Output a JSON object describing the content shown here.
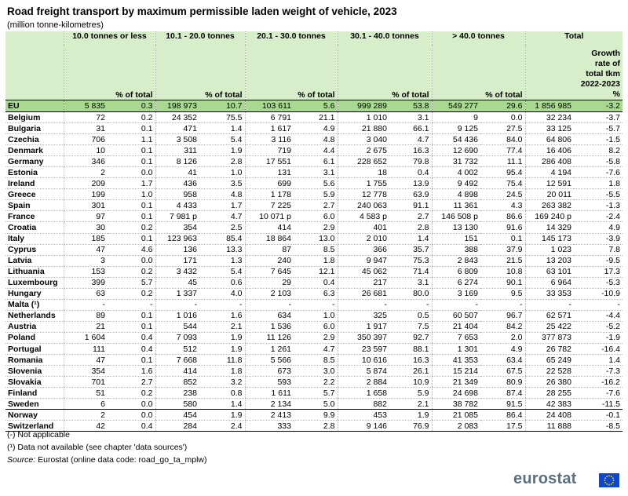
{
  "title": "Road freight transport by maximum permissible laden weight of vehicle, 2023",
  "subtitle": "(million tonne-kilometres)",
  "group_headers": [
    "10.0 tonnes or less",
    "10.1 - 20.0 tonnes",
    "20.1 - 30.0 tonnes",
    "30.1 - 40.0 tonnes",
    "> 40.0 tonnes",
    "Total"
  ],
  "pct_header": "% of total",
  "growth_header_lines": [
    "Growth",
    "rate of",
    "total tkm",
    "2022-2023",
    "%"
  ],
  "eu_row": [
    "EU",
    "5 835",
    "0.3",
    "198 973",
    "10.7",
    "103 611",
    "5.6",
    "999 289",
    "53.8",
    "549 277",
    "29.6",
    "1 856 985",
    "-3.2"
  ],
  "rows": [
    [
      "Belgium",
      "72",
      "0.2",
      "24 352",
      "75.5",
      "6 791",
      "21.1",
      "1 010",
      "3.1",
      "9",
      "0.0",
      "32 234",
      "-3.7"
    ],
    [
      "Bulgaria",
      "31",
      "0.1",
      "471",
      "1.4",
      "1 617",
      "4.9",
      "21 880",
      "66.1",
      "9 125",
      "27.5",
      "33 125",
      "-5.7"
    ],
    [
      "Czechia",
      "706",
      "1.1",
      "3 508",
      "5.4",
      "3 116",
      "4.8",
      "3 040",
      "4.7",
      "54 436",
      "84.0",
      "64 806",
      "-1.5"
    ],
    [
      "Denmark",
      "10",
      "0.1",
      "311",
      "1.9",
      "719",
      "4.4",
      "2 675",
      "16.3",
      "12 690",
      "77.4",
      "16 406",
      "8.2"
    ],
    [
      "Germany",
      "346",
      "0.1",
      "8 126",
      "2.8",
      "17 551",
      "6.1",
      "228 652",
      "79.8",
      "31 732",
      "11.1",
      "286 408",
      "-5.8"
    ],
    [
      "Estonia",
      "2",
      "0.0",
      "41",
      "1.0",
      "131",
      "3.1",
      "18",
      "0.4",
      "4 002",
      "95.4",
      "4 194",
      "-7.6"
    ],
    [
      "Ireland",
      "209",
      "1.7",
      "436",
      "3.5",
      "699",
      "5.6",
      "1 755",
      "13.9",
      "9 492",
      "75.4",
      "12 591",
      "1.8"
    ],
    [
      "Greece",
      "199",
      "1.0",
      "958",
      "4.8",
      "1 178",
      "5.9",
      "12 778",
      "63.9",
      "4 898",
      "24.5",
      "20 011",
      "-5.5"
    ],
    [
      "Spain",
      "301",
      "0.1",
      "4 433",
      "1.7",
      "7 225",
      "2.7",
      "240 063",
      "91.1",
      "11 361",
      "4.3",
      "263 382",
      "-1.3"
    ],
    [
      "France",
      "97",
      "0.1",
      "7 981 p",
      "4.7",
      "10 071 p",
      "6.0",
      "4 583 p",
      "2.7",
      "146 508 p",
      "86.6",
      "169 240 p",
      "-2.4"
    ],
    [
      "Croatia",
      "30",
      "0.2",
      "354",
      "2.5",
      "414",
      "2.9",
      "401",
      "2.8",
      "13 130",
      "91.6",
      "14 329",
      "4.9"
    ],
    [
      "Italy",
      "185",
      "0.1",
      "123 963",
      "85.4",
      "18 864",
      "13.0",
      "2 010",
      "1.4",
      "151",
      "0.1",
      "145 173",
      "-3.9"
    ],
    [
      "Cyprus",
      "47",
      "4.6",
      "136",
      "13.3",
      "87",
      "8.5",
      "366",
      "35.7",
      "388",
      "37.9",
      "1 023",
      "7.8"
    ],
    [
      "Latvia",
      "3",
      "0.0",
      "171",
      "1.3",
      "240",
      "1.8",
      "9 947",
      "75.3",
      "2 843",
      "21.5",
      "13 203",
      "-9.5"
    ],
    [
      "Lithuania",
      "153",
      "0.2",
      "3 432",
      "5.4",
      "7 645",
      "12.1",
      "45 062",
      "71.4",
      "6 809",
      "10.8",
      "63 101",
      "17.3"
    ],
    [
      "Luxembourg",
      "399",
      "5.7",
      "45",
      "0.6",
      "29",
      "0.4",
      "217",
      "3.1",
      "6 274",
      "90.1",
      "6 964",
      "-5.3"
    ],
    [
      "Hungary",
      "63",
      "0.2",
      "1 337",
      "4.0",
      "2 103",
      "6.3",
      "26 681",
      "80.0",
      "3 169",
      "9.5",
      "33 353",
      "-10.9"
    ],
    [
      "Malta (¹)",
      "-",
      "-",
      "-",
      "-",
      "-",
      "-",
      "-",
      "-",
      "-",
      "-",
      "-",
      "-"
    ],
    [
      "Netherlands",
      "89",
      "0.1",
      "1 016",
      "1.6",
      "634",
      "1.0",
      "325",
      "0.5",
      "60 507",
      "96.7",
      "62 571",
      "-4.4"
    ],
    [
      "Austria",
      "21",
      "0.1",
      "544",
      "2.1",
      "1 536",
      "6.0",
      "1 917",
      "7.5",
      "21 404",
      "84.2",
      "25 422",
      "-5.2"
    ],
    [
      "Poland",
      "1 604",
      "0.4",
      "7 093",
      "1.9",
      "11 126",
      "2.9",
      "350 397",
      "92.7",
      "7 653",
      "2.0",
      "377 873",
      "-1.9"
    ],
    [
      "Portugal",
      "111",
      "0.4",
      "512",
      "1.9",
      "1 261",
      "4.7",
      "23 597",
      "88.1",
      "1 301",
      "4.9",
      "26 782",
      "-16.4"
    ],
    [
      "Romania",
      "47",
      "0.1",
      "7 668",
      "11.8",
      "5 566",
      "8.5",
      "10 616",
      "16.3",
      "41 353",
      "63.4",
      "65 249",
      "1.4"
    ],
    [
      "Slovenia",
      "354",
      "1.6",
      "414",
      "1.8",
      "673",
      "3.0",
      "5 874",
      "26.1",
      "15 214",
      "67.5",
      "22 528",
      "-7.3"
    ],
    [
      "Slovakia",
      "701",
      "2.7",
      "852",
      "3.2",
      "593",
      "2.2",
      "2 884",
      "10.9",
      "21 349",
      "80.9",
      "26 380",
      "-16.2"
    ],
    [
      "Finland",
      "51",
      "0.2",
      "238",
      "0.8",
      "1 611",
      "5.7",
      "1 658",
      "5.9",
      "24 698",
      "87.4",
      "28 255",
      "-7.6"
    ],
    [
      "Sweden",
      "6",
      "0.0",
      "580",
      "1.4",
      "2 134",
      "5.0",
      "882",
      "2.1",
      "38 782",
      "91.5",
      "42 383",
      "-11.5"
    ],
    [
      "Norway",
      "2",
      "0.0",
      "454",
      "1.9",
      "2 413",
      "9.9",
      "453",
      "1.9",
      "21 085",
      "86.4",
      "24 408",
      "-0.1"
    ],
    [
      "Switzerland",
      "42",
      "0.4",
      "284",
      "2.4",
      "333",
      "2.8",
      "9 146",
      "76.9",
      "2 083",
      "17.5",
      "11 888",
      "-8.5"
    ]
  ],
  "notes": {
    "not_applicable": "(-) Not applicable",
    "not_available": "(¹) Data not available (see chapter 'data sources')",
    "source_label": "Source:",
    "source_text": "Eurostat (online data code: road_go_ta_mplw)"
  },
  "logo": {
    "text": "eurostat",
    "color": "#5c6f80",
    "flag_color": "#0e47cb",
    "star_color": "#ffdd00"
  }
}
